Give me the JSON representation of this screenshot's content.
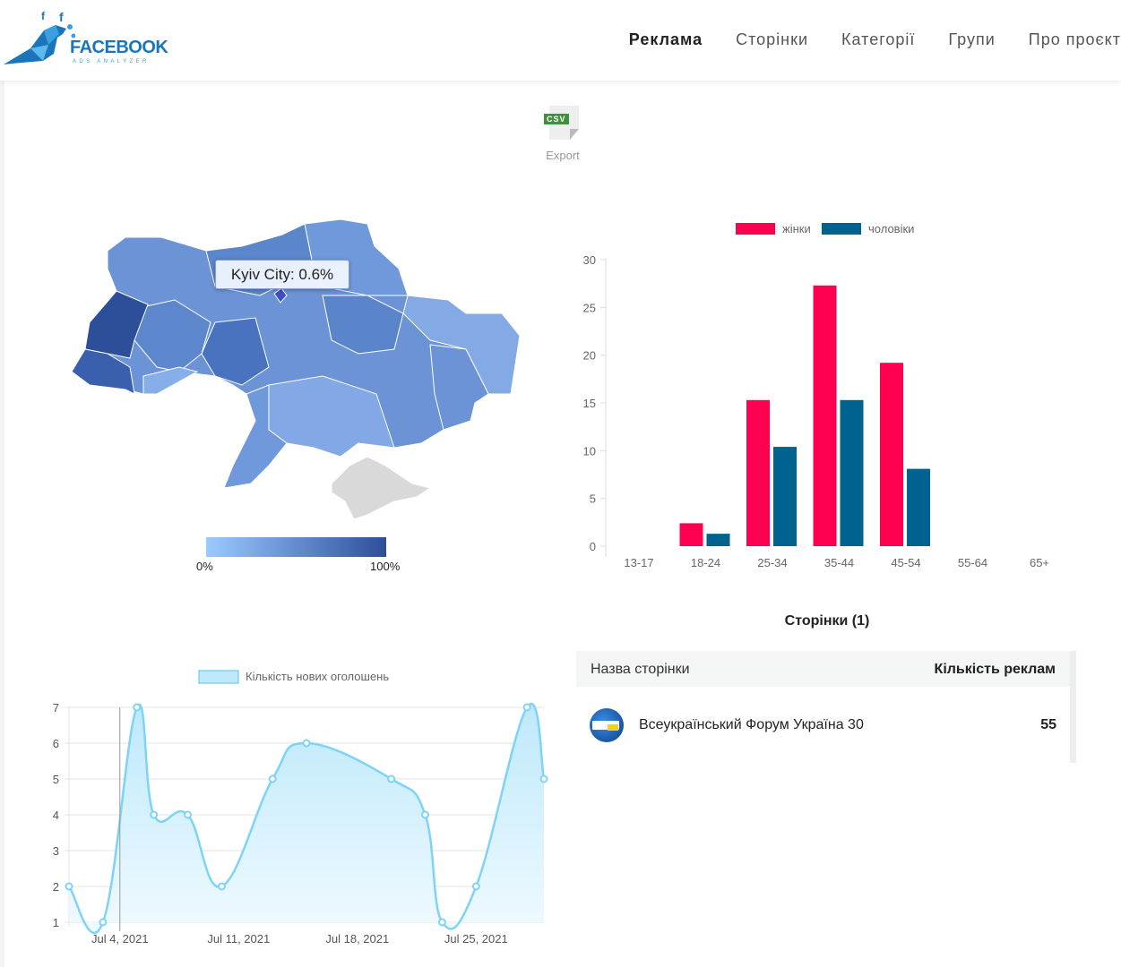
{
  "header": {
    "logo": {
      "word": "FACEBOOK",
      "sub": "ADS ANALYZER"
    },
    "nav": [
      {
        "label": "Реклама",
        "active": true
      },
      {
        "label": "Сторінки"
      },
      {
        "label": "Категорії"
      },
      {
        "label": "Групи"
      },
      {
        "label": "Про проєкт"
      }
    ]
  },
  "export": {
    "badge": "CSV",
    "label": "Export",
    "icon": "csv-file-icon"
  },
  "map": {
    "tooltip": "Kyiv City: 0.6%",
    "legend_min": "0%",
    "legend_max": "100%",
    "colors": {
      "low": "#9ccaff",
      "high": "#2d4f9a",
      "no_data": "#d9d9d9"
    }
  },
  "chart_data": [
    {
      "type": "bar",
      "categories": [
        "13-17",
        "18-24",
        "25-34",
        "35-44",
        "45-54",
        "55-64",
        "65+"
      ],
      "series": [
        {
          "name": "жінки",
          "color": "#ff0050",
          "values": [
            0,
            2.4,
            15.3,
            27.3,
            19.2,
            0,
            0
          ]
        },
        {
          "name": "чоловіки",
          "color": "#00628e",
          "values": [
            0,
            1.3,
            10.4,
            15.3,
            8.1,
            0,
            0
          ]
        }
      ],
      "yticks": [
        0,
        5,
        10,
        15,
        20,
        25,
        30
      ],
      "ylim": [
        0,
        30
      ],
      "legend": "top"
    },
    {
      "type": "area",
      "series": [
        {
          "name": "Кількість нових оголошень",
          "color": "#7fd3f7",
          "x": [
            "2021-07-01",
            "2021-07-03",
            "2021-07-05",
            "2021-07-06",
            "2021-07-08",
            "2021-07-10",
            "2021-07-13",
            "2021-07-15",
            "2021-07-20",
            "2021-07-22",
            "2021-07-23",
            "2021-07-25",
            "2021-07-28",
            "2021-07-29"
          ],
          "values": [
            2,
            1,
            7,
            4,
            4,
            2,
            5,
            6,
            5,
            4,
            1,
            2,
            7,
            5
          ]
        }
      ],
      "xticks": [
        {
          "date": "2021-07-04",
          "label": "Jul 4, 2021"
        },
        {
          "date": "2021-07-11",
          "label": "Jul 11, 2021"
        },
        {
          "date": "2021-07-18",
          "label": "Jul 18, 2021"
        },
        {
          "date": "2021-07-25",
          "label": "Jul 25, 2021"
        }
      ],
      "yticks": [
        1,
        2,
        3,
        4,
        5,
        6,
        7
      ],
      "ylim": [
        1,
        7
      ],
      "grid": true,
      "legend": "top",
      "hover_date": "2021-07-04"
    }
  ],
  "pages": {
    "title": "Сторінки (1)",
    "columns": [
      "Назва сторінки",
      "Кількість реклам"
    ],
    "rows": [
      {
        "name": "Всеукраїнський Форум Україна 30",
        "count": "55"
      }
    ]
  }
}
